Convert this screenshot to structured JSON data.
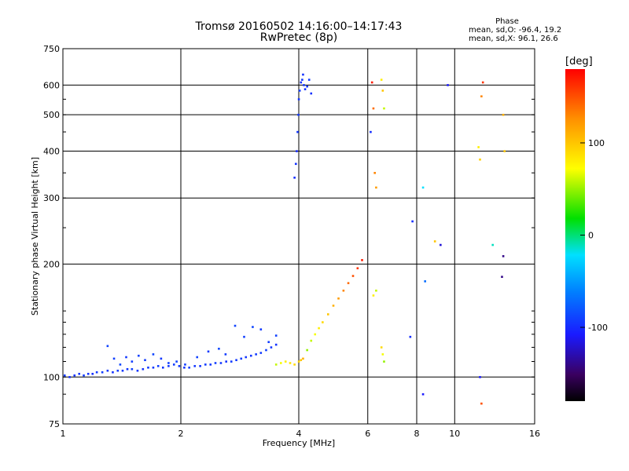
{
  "header": {
    "title_line1": "Tromsø 20160502 14:16:00–14:17:43",
    "title_line2": "RwPretec (8p)"
  },
  "phase_stats": {
    "heading": "Phase",
    "o_label": "mean, sd,O:",
    "o_values": "-96.4, 19.2",
    "x_label": "mean, sd,X:",
    "x_values": "96.1, 26.6"
  },
  "colorbar": {
    "unit_label": "[deg]",
    "ticks": [
      "100",
      "0",
      "-100"
    ],
    "tick_values": [
      100,
      0,
      -100
    ],
    "range": [
      -180,
      180
    ],
    "colormap": "rainbow"
  },
  "chart_data": {
    "type": "scatter",
    "title": "Tromsø 20160502 14:16:00–14:17:43",
    "subtitle": "RwPretec (8p)",
    "xlabel": "Frequency [MHz]",
    "ylabel": "Stationary phase Virtual Height [km]",
    "xscale": "log",
    "yscale": "log",
    "xlim": [
      1,
      16
    ],
    "ylim": [
      75,
      750
    ],
    "xticks": [
      1,
      2,
      4,
      6,
      8,
      10,
      16
    ],
    "yticks": [
      75,
      100,
      200,
      300,
      400,
      500,
      600,
      750
    ],
    "grid": true,
    "color_variable": "phase [deg]",
    "series": [
      {
        "x": [
          1.01,
          1.04,
          1.07,
          1.1,
          1.13,
          1.16,
          1.19,
          1.22,
          1.26,
          1.3,
          1.34,
          1.38,
          1.42,
          1.46,
          1.5,
          1.55,
          1.6,
          1.65,
          1.7,
          1.75,
          1.8,
          1.86,
          1.92,
          1.98,
          2.04,
          2.1,
          2.17,
          2.24,
          2.31,
          2.38,
          2.45,
          2.53,
          2.61,
          2.69,
          2.77,
          2.85,
          2.93,
          3.02,
          3.11,
          3.2,
          3.3,
          3.4,
          3.5
        ],
        "y": [
          101,
          100,
          101,
          102,
          101,
          102,
          102,
          103,
          103,
          104,
          103,
          104,
          104,
          105,
          105,
          104,
          105,
          106,
          106,
          107,
          106,
          107,
          108,
          107,
          106,
          106,
          107,
          107,
          108,
          108,
          109,
          109,
          110,
          110,
          111,
          112,
          113,
          114,
          115,
          116,
          118,
          120,
          122
        ],
        "phase": [
          -95,
          -100,
          -98,
          -96,
          -94,
          -97,
          -99,
          -95,
          -93,
          -96,
          -98,
          -94,
          -95,
          -97,
          -92,
          -96,
          -98,
          -94,
          -95,
          -93,
          -97,
          -96,
          -94,
          -95,
          -98,
          -92,
          -96,
          -97,
          -94,
          -95,
          -93,
          -96,
          -98,
          -94,
          -95,
          -93,
          -97,
          -96,
          -94,
          -95,
          -92,
          -96,
          -98
        ]
      },
      {
        "x": [
          1.3,
          1.35,
          1.4,
          1.45,
          1.5,
          1.56,
          1.62,
          1.7,
          1.78,
          1.86,
          1.95,
          2.05,
          2.2,
          2.35,
          2.5,
          2.6,
          2.75,
          2.9,
          3.05,
          3.2,
          3.35,
          3.5
        ],
        "y": [
          121,
          112,
          108,
          113,
          110,
          114,
          111,
          115,
          112,
          109,
          110,
          108,
          113,
          117,
          119,
          115,
          137,
          128,
          136,
          134,
          124,
          129
        ],
        "phase": [
          -90,
          -92,
          -88,
          -95,
          -93,
          -91,
          -94,
          -89,
          -96,
          -92,
          -90,
          -93,
          -91,
          -95,
          -88,
          -94,
          -90,
          -92,
          -89,
          -95,
          -93,
          -91
        ]
      },
      {
        "x": [
          3.5,
          3.6,
          3.7,
          3.8,
          3.9,
          4.0,
          4.05,
          4.1,
          4.2,
          4.3,
          4.4,
          4.5,
          4.6,
          4.75,
          4.9,
          5.05,
          5.2,
          5.35,
          5.5,
          5.65,
          5.8
        ],
        "y": [
          108,
          109,
          110,
          109,
          108,
          110,
          111,
          112,
          118,
          125,
          130,
          135,
          140,
          147,
          155,
          162,
          170,
          178,
          186,
          195,
          205
        ],
        "phase": [
          60,
          70,
          80,
          85,
          90,
          95,
          100,
          110,
          50,
          60,
          70,
          80,
          90,
          100,
          110,
          120,
          130,
          140,
          150,
          160,
          170
        ]
      },
      {
        "x": [
          3.9,
          3.93,
          3.95,
          3.97,
          3.99,
          4.0,
          4.02,
          4.05,
          4.08,
          4.1,
          4.12,
          4.15,
          4.2,
          4.25,
          4.3
        ],
        "y": [
          340,
          370,
          400,
          450,
          500,
          550,
          580,
          610,
          620,
          640,
          600,
          585,
          595,
          620,
          570
        ],
        "phase": [
          -100,
          -98,
          -102,
          -96,
          -95,
          -97,
          -94,
          -100,
          -95,
          -98,
          -96,
          -99,
          -97,
          -95,
          -98
        ]
      },
      {
        "x": [
          6.1,
          6.15,
          6.2,
          6.25,
          6.3,
          6.5,
          6.55,
          6.6,
          7.8,
          8.3,
          8.4,
          8.9,
          9.6,
          11.5,
          11.6,
          11.7,
          11.8,
          13.3,
          13.4
        ],
        "y": [
          450,
          610,
          520,
          350,
          320,
          620,
          580,
          520,
          260,
          320,
          180,
          230,
          600,
          410,
          380,
          560,
          610,
          500,
          400
        ],
        "phase": [
          -100,
          170,
          140,
          130,
          120,
          80,
          100,
          60,
          -100,
          -20,
          -70,
          100,
          -110,
          80,
          95,
          130,
          160,
          110,
          100
        ]
      },
      {
        "x": [
          6.2,
          6.3,
          6.5,
          6.55,
          6.6,
          7.7,
          8.3,
          9.2,
          11.6,
          11.7,
          12.5,
          13.2,
          13.3
        ],
        "y": [
          165,
          170,
          120,
          115,
          110,
          128,
          90,
          225,
          100,
          85,
          225,
          185,
          210
        ],
        "phase": [
          80,
          60,
          90,
          70,
          50,
          -100,
          -110,
          -120,
          -110,
          150,
          -10,
          -140,
          -140
        ]
      }
    ]
  }
}
